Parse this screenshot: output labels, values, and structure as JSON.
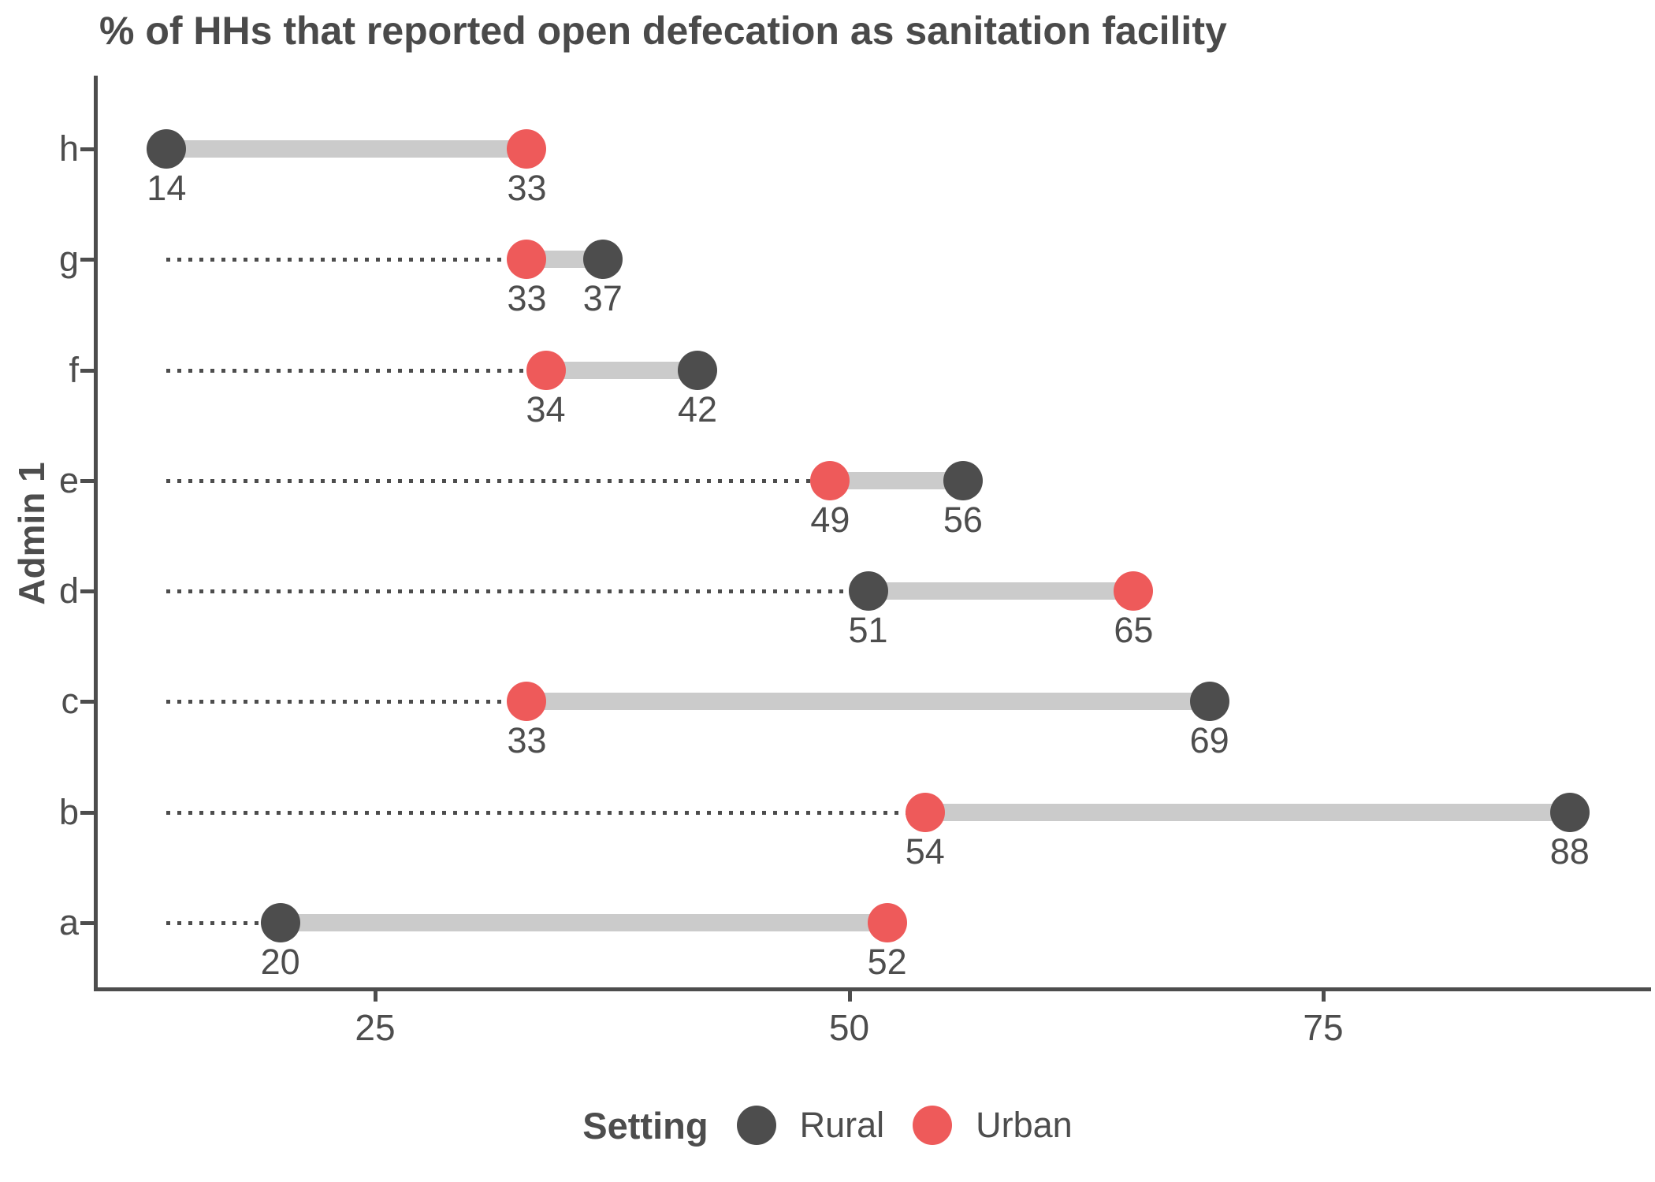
{
  "chart_data": {
    "type": "dumbbell",
    "title": "% of HHs that reported open defecation as sanitation facility",
    "xlabel": "",
    "ylabel": "Admin 1",
    "legend_title": "Setting",
    "legend_position": "bottom",
    "grid": false,
    "categories": [
      "h",
      "g",
      "f",
      "e",
      "d",
      "c",
      "b",
      "a"
    ],
    "series": [
      {
        "name": "Rural",
        "color": "#4d4d4d",
        "values": [
          14,
          37,
          42,
          56,
          51,
          69,
          88,
          20
        ]
      },
      {
        "name": "Urban",
        "color": "#ee5a5a",
        "values": [
          33,
          33,
          34,
          49,
          65,
          33,
          54,
          52
        ]
      }
    ],
    "point_value_labels": {
      "h": {
        "Rural": "14",
        "Urban": "33"
      },
      "g": {
        "Rural": "37",
        "Urban": "33"
      },
      "f": {
        "Rural": "42",
        "Urban": "34"
      },
      "e": {
        "Rural": "56",
        "Urban": "49"
      },
      "d": {
        "Rural": "51",
        "Urban": "65"
      },
      "c": {
        "Rural": "69",
        "Urban": "33"
      },
      "b": {
        "Rural": "88",
        "Urban": "54"
      },
      "a": {
        "Rural": "20",
        "Urban": "52"
      }
    },
    "x_ticks": [
      {
        "label": "25",
        "value": 25
      },
      {
        "label": "50",
        "value": 50
      },
      {
        "label": "75",
        "value": 75
      }
    ],
    "x_domain": [
      10.3,
      92.3
    ],
    "leader_start": 14,
    "connector_color": "#cbcbcb",
    "leader_color": "#4d4d4d",
    "axis_color": "#4d4d4d",
    "text_color": "#4d4d4d"
  }
}
